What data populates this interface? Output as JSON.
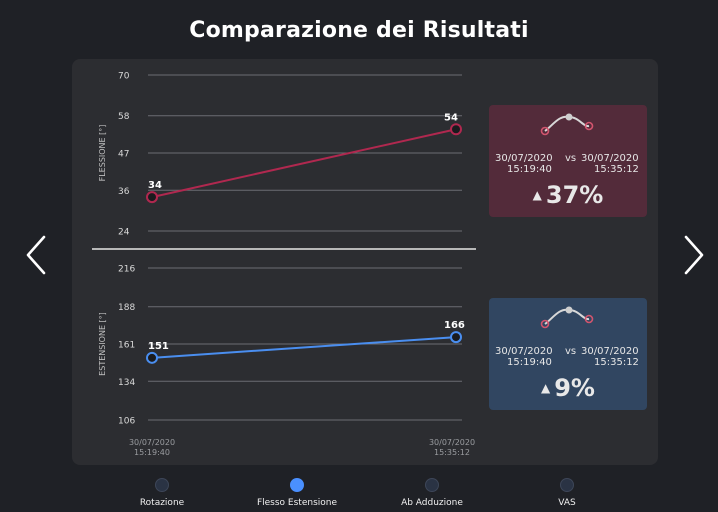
{
  "title": "Comparazione dei Risultati",
  "colors": {
    "background": "#1f2126",
    "panel": "#2c2d31",
    "flessione": "#b0284f",
    "estensione": "#4a8ef0",
    "card_flessione": "#532b3a",
    "card_estensione": "#314661"
  },
  "chart_data": [
    {
      "type": "line",
      "ylabel": "FLESSIONE [°]",
      "yticks": [
        24,
        36,
        47,
        58,
        70
      ],
      "ylim": [
        24,
        70
      ],
      "x": [
        "30/07/2020 15:19:40",
        "30/07/2020 15:35:12"
      ],
      "series": [
        {
          "values": [
            34,
            54
          ],
          "color": "#b0284f"
        }
      ],
      "data_labels": [
        "34",
        "54"
      ]
    },
    {
      "type": "line",
      "ylabel": "ESTENSIONE [°]",
      "yticks": [
        106,
        134,
        161,
        188,
        216
      ],
      "ylim": [
        106,
        216
      ],
      "x": [
        "30/07/2020 15:19:40",
        "30/07/2020 15:35:12"
      ],
      "xtick_labels": [
        {
          "date": "30/07/2020",
          "time": "15:19:40"
        },
        {
          "date": "30/07/2020",
          "time": "15:35:12"
        }
      ],
      "series": [
        {
          "values": [
            151,
            166
          ],
          "color": "#4a8ef0"
        }
      ],
      "data_labels": [
        "151",
        "166"
      ]
    }
  ],
  "cards": {
    "flessione": {
      "date1": "30/07/2020",
      "time1": "15:19:40",
      "vs": "vs",
      "date2": "30/07/2020",
      "time2": "15:35:12",
      "trend_icon": "up-triangle",
      "percent": "37%"
    },
    "estensione": {
      "date1": "30/07/2020",
      "time1": "15:19:40",
      "vs": "vs",
      "date2": "30/07/2020",
      "time2": "15:35:12",
      "trend_icon": "up-triangle",
      "percent": "9%"
    }
  },
  "navigation": {
    "prev_icon": "chevron-left",
    "next_icon": "chevron-right",
    "items": [
      {
        "label": "Rotazione",
        "active": false
      },
      {
        "label": "Flesso Estensione",
        "active": true
      },
      {
        "label": "Ab Adduzione",
        "active": false
      },
      {
        "label": "VAS",
        "active": false
      }
    ]
  }
}
